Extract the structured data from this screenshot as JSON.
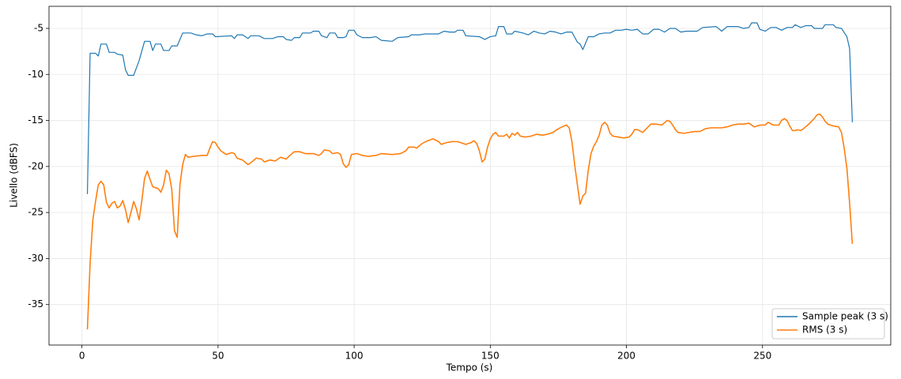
{
  "chart_data": {
    "type": "line",
    "xlabel": "Tempo (s)",
    "ylabel": "Livello (dBFS)",
    "xlim": [
      -12.1,
      297.1
    ],
    "ylim": [
      -39.4,
      -2.6
    ],
    "xticks": [
      0,
      50,
      100,
      150,
      200,
      250
    ],
    "yticks": [
      -35,
      -30,
      -25,
      -20,
      -15,
      -10,
      -5
    ],
    "grid": true,
    "legend": "lower right",
    "series": [
      {
        "name": "Sample peak (3 s)",
        "color": "#1f77b4",
        "x": [
          2,
          3,
          5,
          6,
          7,
          9,
          10,
          12,
          13,
          15,
          16,
          17,
          19,
          21,
          23,
          25,
          26,
          27,
          29,
          30,
          32,
          33,
          35,
          37,
          40,
          42,
          44,
          46,
          48,
          49,
          55,
          56,
          57,
          59,
          61,
          62,
          65,
          67,
          70,
          72,
          74,
          75,
          77,
          78,
          80,
          81,
          84,
          85,
          87,
          88,
          90,
          91,
          93,
          94,
          96,
          97,
          98,
          100,
          101,
          103,
          106,
          108,
          110,
          114,
          116,
          120,
          121,
          124,
          126,
          131,
          133,
          135,
          137,
          138,
          140,
          141,
          146,
          148,
          150,
          152,
          153,
          155,
          156,
          158,
          159,
          162,
          164,
          166,
          168,
          170,
          172,
          174,
          176,
          178,
          180,
          182,
          183,
          184,
          186,
          188,
          190,
          192,
          194,
          196,
          198,
          200,
          202,
          204,
          206,
          208,
          210,
          212,
          214,
          216,
          218,
          220,
          222,
          226,
          228,
          233,
          235,
          237,
          241,
          243,
          245,
          246,
          248,
          249,
          251,
          253,
          255,
          257,
          259,
          261,
          262,
          264,
          266,
          268,
          269,
          272,
          273,
          276,
          277,
          279,
          281,
          282,
          283
        ],
        "values": [
          -23,
          -7.7,
          -7.7,
          -8,
          -6.7,
          -6.7,
          -7.6,
          -7.6,
          -7.8,
          -7.9,
          -9.5,
          -10.1,
          -10.1,
          -8.5,
          -6.4,
          -6.4,
          -7.4,
          -6.7,
          -6.7,
          -7.4,
          -7.4,
          -6.9,
          -6.9,
          -5.5,
          -5.5,
          -5.7,
          -5.8,
          -5.6,
          -5.6,
          -5.9,
          -5.8,
          -6.1,
          -5.7,
          -5.7,
          -6.1,
          -5.8,
          -5.8,
          -6.1,
          -6.1,
          -5.9,
          -5.9,
          -6.2,
          -6.3,
          -6.0,
          -6.0,
          -5.5,
          -5.5,
          -5.3,
          -5.3,
          -5.8,
          -6.0,
          -5.5,
          -5.5,
          -6.0,
          -6.0,
          -5.9,
          -5.2,
          -5.2,
          -5.7,
          -6.0,
          -6.0,
          -5.9,
          -6.3,
          -6.4,
          -6.0,
          -5.9,
          -5.7,
          -5.7,
          -5.6,
          -5.6,
          -5.3,
          -5.4,
          -5.4,
          -5.2,
          -5.2,
          -5.8,
          -5.9,
          -6.2,
          -5.9,
          -5.8,
          -4.8,
          -4.8,
          -5.6,
          -5.6,
          -5.3,
          -5.5,
          -5.7,
          -5.3,
          -5.5,
          -5.6,
          -5.3,
          -5.4,
          -5.6,
          -5.4,
          -5.4,
          -6.5,
          -6.7,
          -7.3,
          -5.9,
          -5.9,
          -5.6,
          -5.5,
          -5.5,
          -5.2,
          -5.2,
          -5.1,
          -5.2,
          -5.1,
          -5.6,
          -5.6,
          -5.1,
          -5.1,
          -5.4,
          -5.0,
          -5.0,
          -5.4,
          -5.3,
          -5.3,
          -4.9,
          -4.8,
          -5.3,
          -4.8,
          -4.8,
          -5.0,
          -4.9,
          -4.4,
          -4.4,
          -5.1,
          -5.3,
          -4.9,
          -4.9,
          -5.2,
          -4.9,
          -4.9,
          -4.6,
          -4.9,
          -4.7,
          -4.7,
          -5.0,
          -5.0,
          -4.6,
          -4.6,
          -4.9,
          -5.0,
          -5.9,
          -7.2,
          -15.2
        ]
      },
      {
        "name": "RMS (3 s)",
        "color": "#ff7f0e",
        "x": [
          2,
          3,
          4,
          5,
          6,
          7,
          8,
          9,
          10,
          11,
          12,
          13,
          14,
          15,
          16,
          17,
          18,
          19,
          20,
          21,
          22,
          23,
          24,
          25,
          26,
          28,
          29,
          30,
          31,
          32,
          33,
          34,
          35,
          36,
          37,
          38,
          39,
          41,
          44,
          46,
          47,
          48,
          49,
          50,
          51,
          53,
          55,
          56,
          57,
          59,
          61,
          62,
          64,
          66,
          67,
          69,
          71,
          73,
          75,
          76,
          78,
          80,
          82,
          85,
          87,
          88,
          89,
          91,
          92,
          94,
          95,
          96,
          97,
          98,
          99,
          101,
          103,
          105,
          108,
          110,
          114,
          117,
          119,
          120,
          122,
          123,
          125,
          127,
          129,
          131,
          132,
          134,
          136,
          138,
          139,
          141,
          143,
          144,
          145,
          146,
          147,
          148,
          149,
          150,
          151,
          152,
          153,
          155,
          156,
          157,
          158,
          159,
          160,
          161,
          163,
          165,
          167,
          169,
          171,
          173,
          175,
          177,
          178,
          179,
          180,
          181,
          182,
          183,
          184,
          185,
          186,
          187,
          188,
          189,
          190,
          191,
          192,
          193,
          194,
          195,
          197,
          199,
          201,
          202,
          203,
          204,
          206,
          208,
          209,
          211,
          213,
          215,
          216,
          217,
          218,
          219,
          221,
          223,
          225,
          227,
          229,
          231,
          233,
          235,
          237,
          239,
          241,
          243,
          245,
          247,
          249,
          251,
          252,
          254,
          256,
          257,
          258,
          259,
          260,
          261,
          262,
          263,
          264,
          265,
          267,
          269,
          270,
          271,
          272,
          273,
          274,
          276,
          278,
          279,
          280,
          281,
          282,
          283
        ],
        "values": [
          -37.7,
          -30.5,
          -25.8,
          -23.8,
          -22.0,
          -21.6,
          -22.0,
          -23.9,
          -24.5,
          -24.0,
          -23.8,
          -24.5,
          -24.3,
          -23.7,
          -24.7,
          -26.1,
          -25.0,
          -23.8,
          -24.6,
          -25.8,
          -23.7,
          -21.3,
          -20.5,
          -21.4,
          -22.2,
          -22.4,
          -22.8,
          -22.0,
          -20.4,
          -20.8,
          -22.5,
          -27.0,
          -27.7,
          -22.0,
          -19.8,
          -18.7,
          -19.0,
          -18.9,
          -18.8,
          -18.8,
          -18.0,
          -17.3,
          -17.4,
          -17.9,
          -18.3,
          -18.7,
          -18.5,
          -18.6,
          -19.1,
          -19.3,
          -19.8,
          -19.6,
          -19.1,
          -19.2,
          -19.5,
          -19.3,
          -19.4,
          -19.0,
          -19.2,
          -18.9,
          -18.4,
          -18.4,
          -18.6,
          -18.6,
          -18.8,
          -18.6,
          -18.2,
          -18.3,
          -18.6,
          -18.5,
          -18.7,
          -19.7,
          -20.1,
          -19.8,
          -18.7,
          -18.6,
          -18.8,
          -18.9,
          -18.8,
          -18.6,
          -18.7,
          -18.6,
          -18.3,
          -17.9,
          -17.9,
          -18.0,
          -17.5,
          -17.2,
          -17.0,
          -17.3,
          -17.6,
          -17.4,
          -17.3,
          -17.3,
          -17.4,
          -17.6,
          -17.4,
          -17.2,
          -17.5,
          -18.3,
          -19.5,
          -19.2,
          -17.9,
          -17.0,
          -16.5,
          -16.3,
          -16.7,
          -16.7,
          -16.5,
          -16.9,
          -16.4,
          -16.6,
          -16.3,
          -16.7,
          -16.8,
          -16.7,
          -16.5,
          -16.6,
          -16.5,
          -16.3,
          -15.9,
          -15.6,
          -15.5,
          -15.8,
          -17.3,
          -19.8,
          -22.0,
          -24.1,
          -23.2,
          -22.9,
          -20.4,
          -18.6,
          -17.8,
          -17.3,
          -16.6,
          -15.5,
          -15.2,
          -15.5,
          -16.4,
          -16.7,
          -16.8,
          -16.9,
          -16.8,
          -16.5,
          -16.0,
          -16.0,
          -16.3,
          -15.7,
          -15.4,
          -15.4,
          -15.5,
          -15.0,
          -15.1,
          -15.5,
          -16.0,
          -16.3,
          -16.4,
          -16.3,
          -16.2,
          -16.2,
          -15.9,
          -15.8,
          -15.8,
          -15.8,
          -15.7,
          -15.5,
          -15.4,
          -15.4,
          -15.3,
          -15.7,
          -15.5,
          -15.5,
          -15.2,
          -15.5,
          -15.5,
          -15.0,
          -14.8,
          -15.0,
          -15.6,
          -16.1,
          -16.1,
          -16.0,
          -16.1,
          -15.9,
          -15.4,
          -14.8,
          -14.4,
          -14.3,
          -14.6,
          -15.1,
          -15.4,
          -15.6,
          -15.7,
          -16.3,
          -18.0,
          -20.2,
          -24.0,
          -28.4
        ]
      }
    ]
  }
}
